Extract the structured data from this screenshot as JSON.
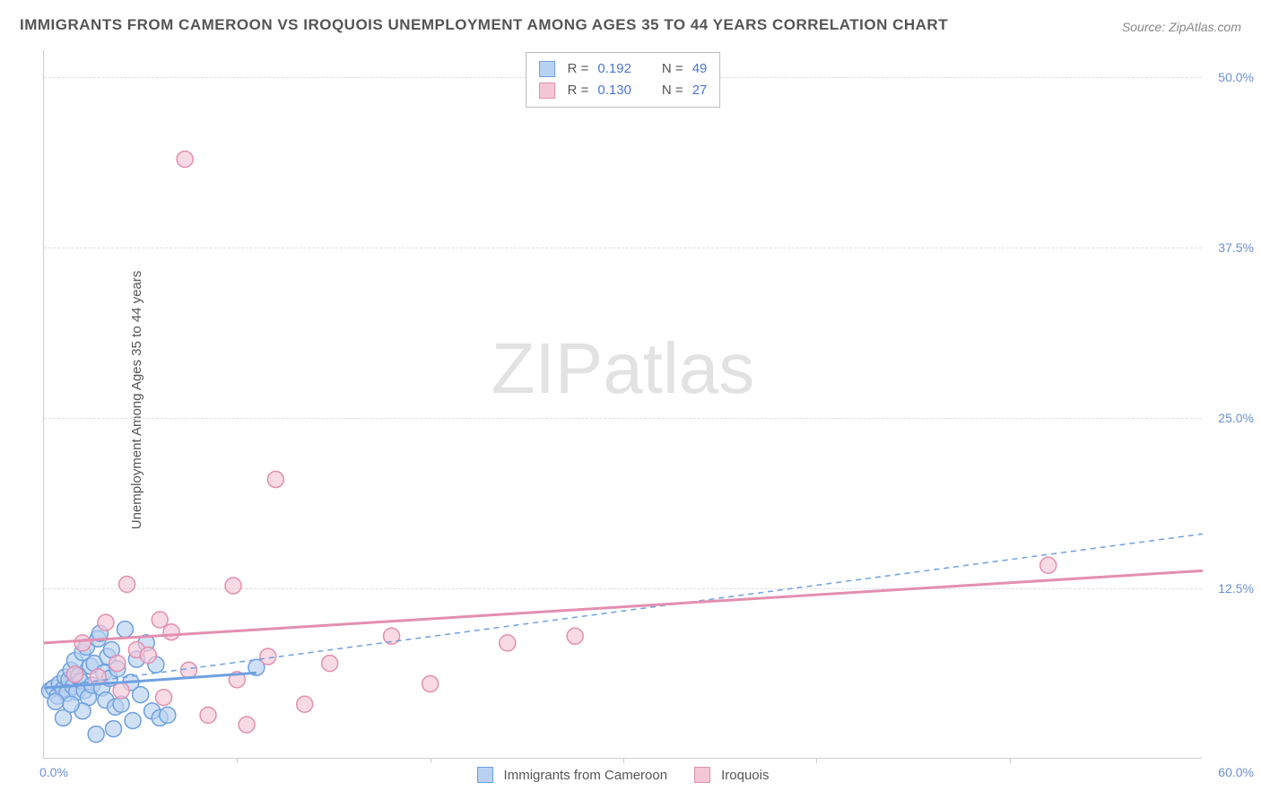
{
  "title": "IMMIGRANTS FROM CAMEROON VS IROQUOIS UNEMPLOYMENT AMONG AGES 35 TO 44 YEARS CORRELATION CHART",
  "source": "Source: ZipAtlas.com",
  "ylabel": "Unemployment Among Ages 35 to 44 years",
  "watermark_a": "ZIP",
  "watermark_b": "atlas",
  "chart": {
    "type": "scatter",
    "background_color": "#ffffff",
    "grid_color": "#dddddd",
    "axis_color": "#cccccc",
    "tick_color": "#6b8fd6",
    "xlim": [
      0,
      60
    ],
    "ylim": [
      0,
      52
    ],
    "yticks": [
      12.5,
      25.0,
      37.5,
      50.0
    ],
    "ytick_labels": [
      "12.5%",
      "25.0%",
      "37.5%",
      "50.0%"
    ],
    "xtick_marks": [
      10,
      20,
      30,
      40,
      50
    ],
    "xtick_left": "0.0%",
    "xtick_right": "60.0%",
    "series": [
      {
        "name": "Immigrants from Cameroon",
        "color_fill": "#b9d1f0",
        "color_stroke": "#6ea0e0",
        "marker_radius": 9,
        "marker_opacity": 0.65,
        "R": "0.192",
        "N": "49",
        "trend_solid": {
          "x1": 0,
          "y1": 5.2,
          "x2": 11,
          "y2": 6.3,
          "width": 3
        },
        "trend_dashed": {
          "x1": 0,
          "y1": 5.2,
          "x2": 60,
          "y2": 16.5,
          "width": 1.5
        },
        "points": [
          [
            0.3,
            5.0
          ],
          [
            0.5,
            5.2
          ],
          [
            0.7,
            4.6
          ],
          [
            0.8,
            5.5
          ],
          [
            1.0,
            5.1
          ],
          [
            1.1,
            6.0
          ],
          [
            1.2,
            4.8
          ],
          [
            1.3,
            5.8
          ],
          [
            1.4,
            6.5
          ],
          [
            1.5,
            5.3
          ],
          [
            1.6,
            7.2
          ],
          [
            1.7,
            4.9
          ],
          [
            1.8,
            6.1
          ],
          [
            1.9,
            5.7
          ],
          [
            2.0,
            7.8
          ],
          [
            2.1,
            5.0
          ],
          [
            2.2,
            8.2
          ],
          [
            2.3,
            4.5
          ],
          [
            2.4,
            6.8
          ],
          [
            2.5,
            5.4
          ],
          [
            2.6,
            7.0
          ],
          [
            2.8,
            8.8
          ],
          [
            2.9,
            9.2
          ],
          [
            3.0,
            5.2
          ],
          [
            3.1,
            6.3
          ],
          [
            3.2,
            4.3
          ],
          [
            3.3,
            7.5
          ],
          [
            3.4,
            5.9
          ],
          [
            3.5,
            8.0
          ],
          [
            3.7,
            3.8
          ],
          [
            3.8,
            6.6
          ],
          [
            4.0,
            4.0
          ],
          [
            4.2,
            9.5
          ],
          [
            4.5,
            5.6
          ],
          [
            4.8,
            7.3
          ],
          [
            5.0,
            4.7
          ],
          [
            5.3,
            8.5
          ],
          [
            5.6,
            3.5
          ],
          [
            5.8,
            6.9
          ],
          [
            6.0,
            3.0
          ],
          [
            2.7,
            1.8
          ],
          [
            3.6,
            2.2
          ],
          [
            1.0,
            3.0
          ],
          [
            2.0,
            3.5
          ],
          [
            0.6,
            4.2
          ],
          [
            1.4,
            4.0
          ],
          [
            4.6,
            2.8
          ],
          [
            6.4,
            3.2
          ],
          [
            11.0,
            6.7
          ]
        ]
      },
      {
        "name": "Iroquois",
        "color_fill": "#f5c6d6",
        "color_stroke": "#e38fb0",
        "marker_radius": 9,
        "marker_opacity": 0.65,
        "R": "0.130",
        "N": "27",
        "trend_solid": {
          "x1": 0,
          "y1": 8.5,
          "x2": 60,
          "y2": 13.8,
          "width": 3
        },
        "points": [
          [
            7.3,
            44.0
          ],
          [
            12.0,
            20.5
          ],
          [
            4.3,
            12.8
          ],
          [
            9.8,
            12.7
          ],
          [
            3.2,
            10.0
          ],
          [
            6.0,
            10.2
          ],
          [
            2.0,
            8.5
          ],
          [
            4.8,
            8.0
          ],
          [
            6.6,
            9.3
          ],
          [
            3.8,
            7.0
          ],
          [
            5.4,
            7.6
          ],
          [
            7.5,
            6.5
          ],
          [
            10.0,
            5.8
          ],
          [
            11.6,
            7.5
          ],
          [
            13.5,
            4.0
          ],
          [
            14.8,
            7.0
          ],
          [
            8.5,
            3.2
          ],
          [
            10.5,
            2.5
          ],
          [
            18.0,
            9.0
          ],
          [
            20.0,
            5.5
          ],
          [
            24.0,
            8.5
          ],
          [
            27.5,
            9.0
          ],
          [
            2.8,
            6.0
          ],
          [
            4.0,
            5.0
          ],
          [
            6.2,
            4.5
          ],
          [
            52.0,
            14.2
          ],
          [
            1.6,
            6.2
          ]
        ]
      }
    ],
    "stats_labels": {
      "R": "R =",
      "N": "N ="
    },
    "legend_bottom": [
      {
        "label": "Immigrants from Cameroon",
        "fill": "#b9d1f0",
        "stroke": "#6ea0e0"
      },
      {
        "label": "Iroquois",
        "fill": "#f5c6d6",
        "stroke": "#e38fb0"
      }
    ]
  }
}
